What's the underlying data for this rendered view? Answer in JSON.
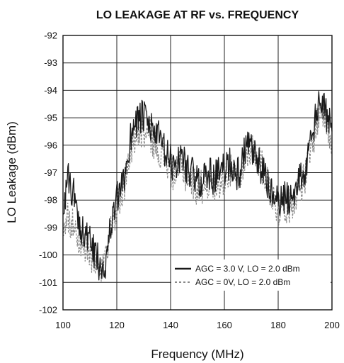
{
  "chart_data": {
    "type": "line",
    "title": "LO LEAKAGE AT RF vs. FREQUENCY",
    "xlabel": "Frequency (MHz)",
    "ylabel": "LO Leakage (dBm)",
    "xlim": [
      100,
      200
    ],
    "ylim": [
      -102,
      -92
    ],
    "x_ticks": [
      "100",
      "120",
      "140",
      "160",
      "180",
      "200"
    ],
    "y_ticks": [
      "-92",
      "-93",
      "-94",
      "-95",
      "-96",
      "-97",
      "-98",
      "-99",
      "-100",
      "-101",
      "-102"
    ],
    "grid": true,
    "legend_position": "bottom-right",
    "series": [
      {
        "name": "AGC = 3.0 V, LO = 2.0 dBm",
        "style": "solid",
        "color": "#1a1a1a",
        "x": [
          100,
          102,
          104,
          106,
          108,
          110,
          112,
          114,
          116,
          118,
          120,
          122,
          124,
          126,
          128,
          130,
          132,
          134,
          136,
          138,
          140,
          142,
          144,
          146,
          148,
          150,
          152,
          154,
          156,
          158,
          160,
          162,
          164,
          166,
          168,
          170,
          172,
          174,
          176,
          178,
          180,
          182,
          184,
          186,
          188,
          190,
          192,
          194,
          196,
          198,
          200
        ],
        "y": [
          -98.2,
          -97.3,
          -97.8,
          -98.8,
          -99.2,
          -99.6,
          -100.0,
          -100.4,
          -100.2,
          -98.8,
          -98.0,
          -97.6,
          -96.5,
          -95.2,
          -95.0,
          -95.0,
          -95.3,
          -95.5,
          -95.8,
          -96.3,
          -96.6,
          -96.8,
          -96.3,
          -96.8,
          -97.0,
          -97.4,
          -97.2,
          -97.0,
          -97.2,
          -97.0,
          -96.9,
          -96.6,
          -97.0,
          -97.0,
          -96.0,
          -96.2,
          -96.6,
          -96.9,
          -97.4,
          -97.8,
          -98.2,
          -97.9,
          -98.0,
          -97.6,
          -97.2,
          -97.0,
          -96.0,
          -95.0,
          -94.3,
          -95.0,
          -95.5
        ]
      },
      {
        "name": "AGC = 0V, LO = 2.0 dBm",
        "style": "dashed",
        "color": "#8a8a8a",
        "x": [
          100,
          102,
          104,
          106,
          108,
          110,
          112,
          114,
          116,
          118,
          120,
          122,
          124,
          126,
          128,
          130,
          132,
          134,
          136,
          138,
          140,
          142,
          144,
          146,
          148,
          150,
          152,
          154,
          156,
          158,
          160,
          162,
          164,
          166,
          168,
          170,
          172,
          174,
          176,
          178,
          180,
          182,
          184,
          186,
          188,
          190,
          192,
          194,
          196,
          198,
          200
        ],
        "y": [
          -99.0,
          -98.6,
          -99.0,
          -99.4,
          -99.8,
          -100.1,
          -100.4,
          -100.7,
          -100.3,
          -99.0,
          -98.3,
          -97.8,
          -96.9,
          -95.8,
          -95.5,
          -95.6,
          -95.6,
          -95.9,
          -96.2,
          -96.6,
          -96.9,
          -97.1,
          -96.7,
          -97.2,
          -97.3,
          -97.6,
          -97.5,
          -97.3,
          -97.5,
          -97.3,
          -97.2,
          -96.9,
          -97.3,
          -97.3,
          -96.3,
          -96.0,
          -96.4,
          -96.8,
          -97.3,
          -97.9,
          -98.4,
          -98.1,
          -98.3,
          -97.9,
          -97.5,
          -97.2,
          -96.3,
          -95.3,
          -94.6,
          -95.2,
          -95.9
        ]
      }
    ]
  }
}
